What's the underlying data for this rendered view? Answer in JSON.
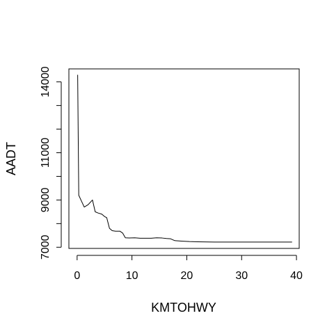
{
  "chart_data": {
    "type": "line",
    "title": "",
    "xlabel": "KMTOHWY",
    "ylabel": "AADT",
    "xlim": [
      -1.5,
      40.5
    ],
    "ylim": [
      6950,
      14550
    ],
    "x_ticks": [
      0,
      10,
      20,
      30,
      40
    ],
    "y_ticks": [
      7000,
      8000,
      9000,
      10000,
      11000,
      12000,
      13000,
      14000
    ],
    "y_tick_labels": [
      "7000",
      "",
      "9000",
      "",
      "11000",
      "",
      "",
      "14000"
    ],
    "grid": false,
    "legend": "none",
    "series": [
      {
        "name": "AADT",
        "color": "#000000",
        "x": [
          0.1,
          0.3,
          0.7,
          1.3,
          2.0,
          2.8,
          3.3,
          3.8,
          4.5,
          5.0,
          5.4,
          5.9,
          6.4,
          7.0,
          7.8,
          8.3,
          8.8,
          9.5,
          10.5,
          11.5,
          12.5,
          13.5,
          14.5,
          15.5,
          16.3,
          17.0,
          17.8,
          19.0,
          20.5,
          22.0,
          25.0,
          30.0,
          35.0,
          39.2
        ],
        "y": [
          14300,
          9200,
          9000,
          8700,
          8800,
          9000,
          8500,
          8450,
          8400,
          8300,
          8250,
          7800,
          7700,
          7680,
          7680,
          7600,
          7400,
          7390,
          7400,
          7380,
          7380,
          7380,
          7400,
          7390,
          7370,
          7360,
          7280,
          7260,
          7240,
          7230,
          7220,
          7220,
          7220,
          7220
        ]
      }
    ]
  }
}
